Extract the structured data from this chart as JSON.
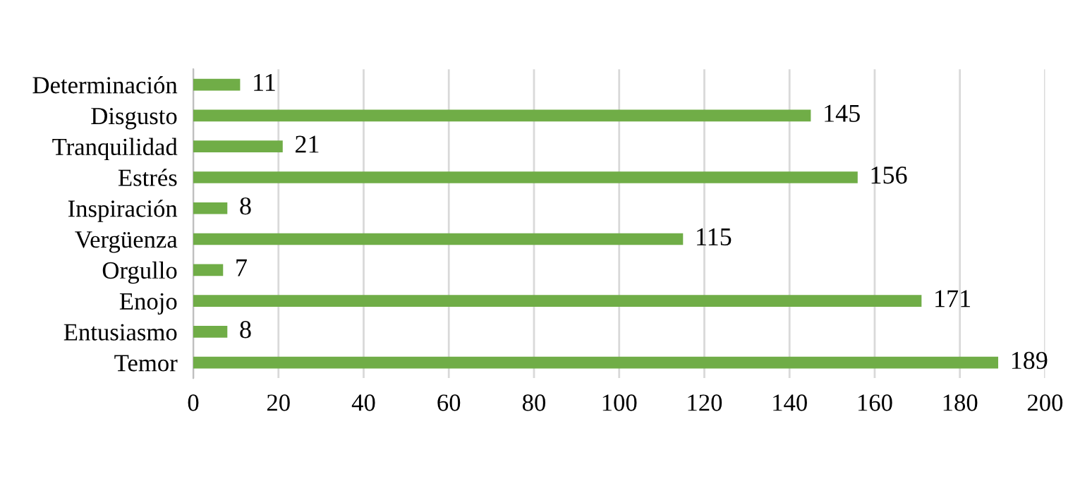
{
  "chart_data": {
    "type": "bar",
    "orientation": "horizontal",
    "categories": [
      "Determinación",
      "Disgusto",
      "Tranquilidad",
      "Estrés",
      "Inspiración",
      "Vergüenza",
      "Orgullo",
      "Enojo",
      "Entusiasmo",
      "Temor"
    ],
    "values": [
      11,
      145,
      21,
      156,
      8,
      115,
      7,
      171,
      8,
      189
    ],
    "color": "#70ad47",
    "xlim": [
      0,
      200
    ],
    "xticks": [
      0,
      20,
      40,
      60,
      80,
      100,
      120,
      140,
      160,
      180,
      200
    ],
    "grid": "x",
    "data_labels": true
  }
}
